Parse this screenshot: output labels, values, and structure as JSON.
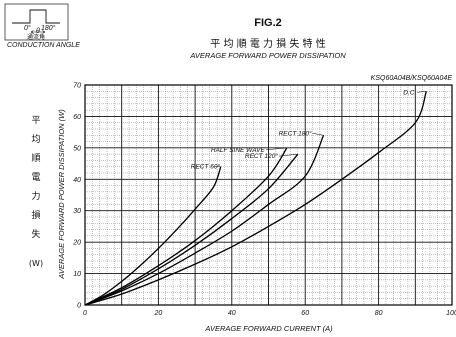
{
  "figure_label": "FIG.2",
  "title_jp": "平 均 順 電 力 損 失 特 性",
  "title_en": "AVERAGE FORWARD POWER DISSIPATION",
  "part_number": "KSQ60A04B/KSQ60A04E",
  "inset": {
    "zero_label": "0°",
    "deg_label": "180°",
    "theta_label": "θ",
    "jp_label": "通流角",
    "en_label": "CONDUCTION ANGLE"
  },
  "ylabel_jp": [
    "平",
    "均",
    "順",
    "電",
    "力",
    "損",
    "失"
  ],
  "ylabel_unit": "(W)",
  "chart_data": {
    "type": "line",
    "xlabel": "AVERAGE FORWARD CURRENT (A)",
    "ylabel": "AVERAGE FORWARD POWER DISSIPATION (W)",
    "xlim": [
      0,
      100
    ],
    "ylim": [
      0,
      70
    ],
    "xticks": [
      0,
      20,
      40,
      60,
      80,
      100
    ],
    "yticks": [
      0,
      10,
      20,
      30,
      40,
      50,
      60,
      70
    ],
    "grid": true,
    "series": [
      {
        "name": "RECT 60°",
        "x": [
          0,
          5,
          10,
          15,
          20,
          25,
          30,
          35,
          37
        ],
        "y": [
          0,
          3.2,
          7.5,
          12.5,
          18,
          24,
          30.5,
          37.5,
          44
        ]
      },
      {
        "name": "HALF SINE WAVE",
        "x": [
          0,
          10,
          20,
          30,
          40,
          50,
          55
        ],
        "y": [
          0,
          5.5,
          12.5,
          20.5,
          30,
          41,
          50
        ]
      },
      {
        "name": "RECT 120°",
        "x": [
          0,
          10,
          20,
          30,
          40,
          50,
          58
        ],
        "y": [
          0,
          5,
          11.5,
          19,
          27.5,
          37,
          48
        ]
      },
      {
        "name": "RECT 180°",
        "x": [
          0,
          10,
          20,
          30,
          40,
          50,
          60,
          65
        ],
        "y": [
          0,
          4.5,
          10,
          16.5,
          23.5,
          32,
          41,
          54
        ]
      },
      {
        "name": "D.C.",
        "x": [
          0,
          10,
          20,
          30,
          40,
          50,
          60,
          70,
          80,
          90,
          93
        ],
        "y": [
          0,
          3.5,
          8,
          13,
          18.5,
          25,
          32,
          40,
          48.5,
          58,
          68
        ]
      }
    ]
  }
}
